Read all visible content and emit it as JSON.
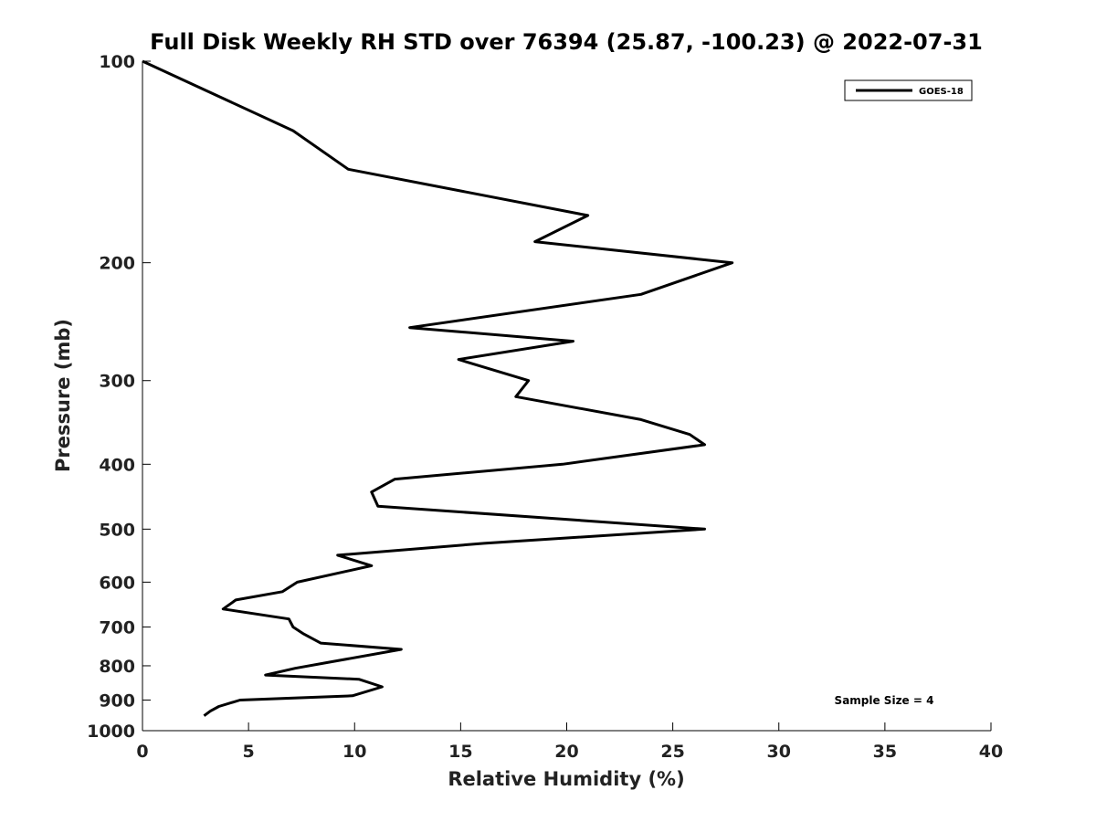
{
  "chart_data": {
    "type": "line",
    "title": "Full Disk Weekly RH STD over 76394 (25.87, -100.23) @ 2022-07-31",
    "xlabel": "Relative Humidity (%)",
    "ylabel": "Pressure (mb)",
    "xlim": [
      0,
      40
    ],
    "ylim": [
      100,
      1000
    ],
    "y_scale": "log",
    "y_reversed": true,
    "grid": false,
    "xticks": [
      "0",
      "5",
      "10",
      "15",
      "20",
      "25",
      "30",
      "35",
      "40"
    ],
    "yticks": [
      "100",
      "200",
      "300",
      "400",
      "500",
      "600",
      "700",
      "800",
      "900",
      "1000"
    ],
    "legend": {
      "placement": "top-right",
      "entries": [
        "GOES-18"
      ]
    },
    "annotation": "Sample Size = 4",
    "series": [
      {
        "name": "GOES-18",
        "color": "#000000",
        "points": [
          [
            0.0,
            100
          ],
          [
            7.1,
            127
          ],
          [
            9.7,
            145
          ],
          [
            21.0,
            170
          ],
          [
            18.5,
            186
          ],
          [
            27.8,
            200
          ],
          [
            23.5,
            223
          ],
          [
            12.6,
            250
          ],
          [
            20.3,
            262
          ],
          [
            14.9,
            279
          ],
          [
            18.2,
            300
          ],
          [
            17.6,
            317
          ],
          [
            23.5,
            343
          ],
          [
            25.8,
            361
          ],
          [
            26.5,
            374
          ],
          [
            19.8,
            400
          ],
          [
            11.9,
            421
          ],
          [
            10.8,
            440
          ],
          [
            11.1,
            462
          ],
          [
            26.5,
            500
          ],
          [
            16.1,
            525
          ],
          [
            9.2,
            547
          ],
          [
            10.8,
            567
          ],
          [
            7.3,
            600
          ],
          [
            6.6,
            620
          ],
          [
            4.4,
            638
          ],
          [
            3.8,
            658
          ],
          [
            6.9,
            681
          ],
          [
            7.1,
            700
          ],
          [
            7.6,
            717
          ],
          [
            8.4,
            740
          ],
          [
            12.2,
            756
          ],
          [
            8.9,
            789
          ],
          [
            7.2,
            807
          ],
          [
            5.8,
            826
          ],
          [
            10.2,
            838
          ],
          [
            11.3,
            860
          ],
          [
            9.9,
            887
          ],
          [
            4.6,
            900
          ],
          [
            3.6,
            920
          ],
          [
            3.2,
            935
          ],
          [
            2.9,
            950
          ]
        ]
      }
    ]
  }
}
